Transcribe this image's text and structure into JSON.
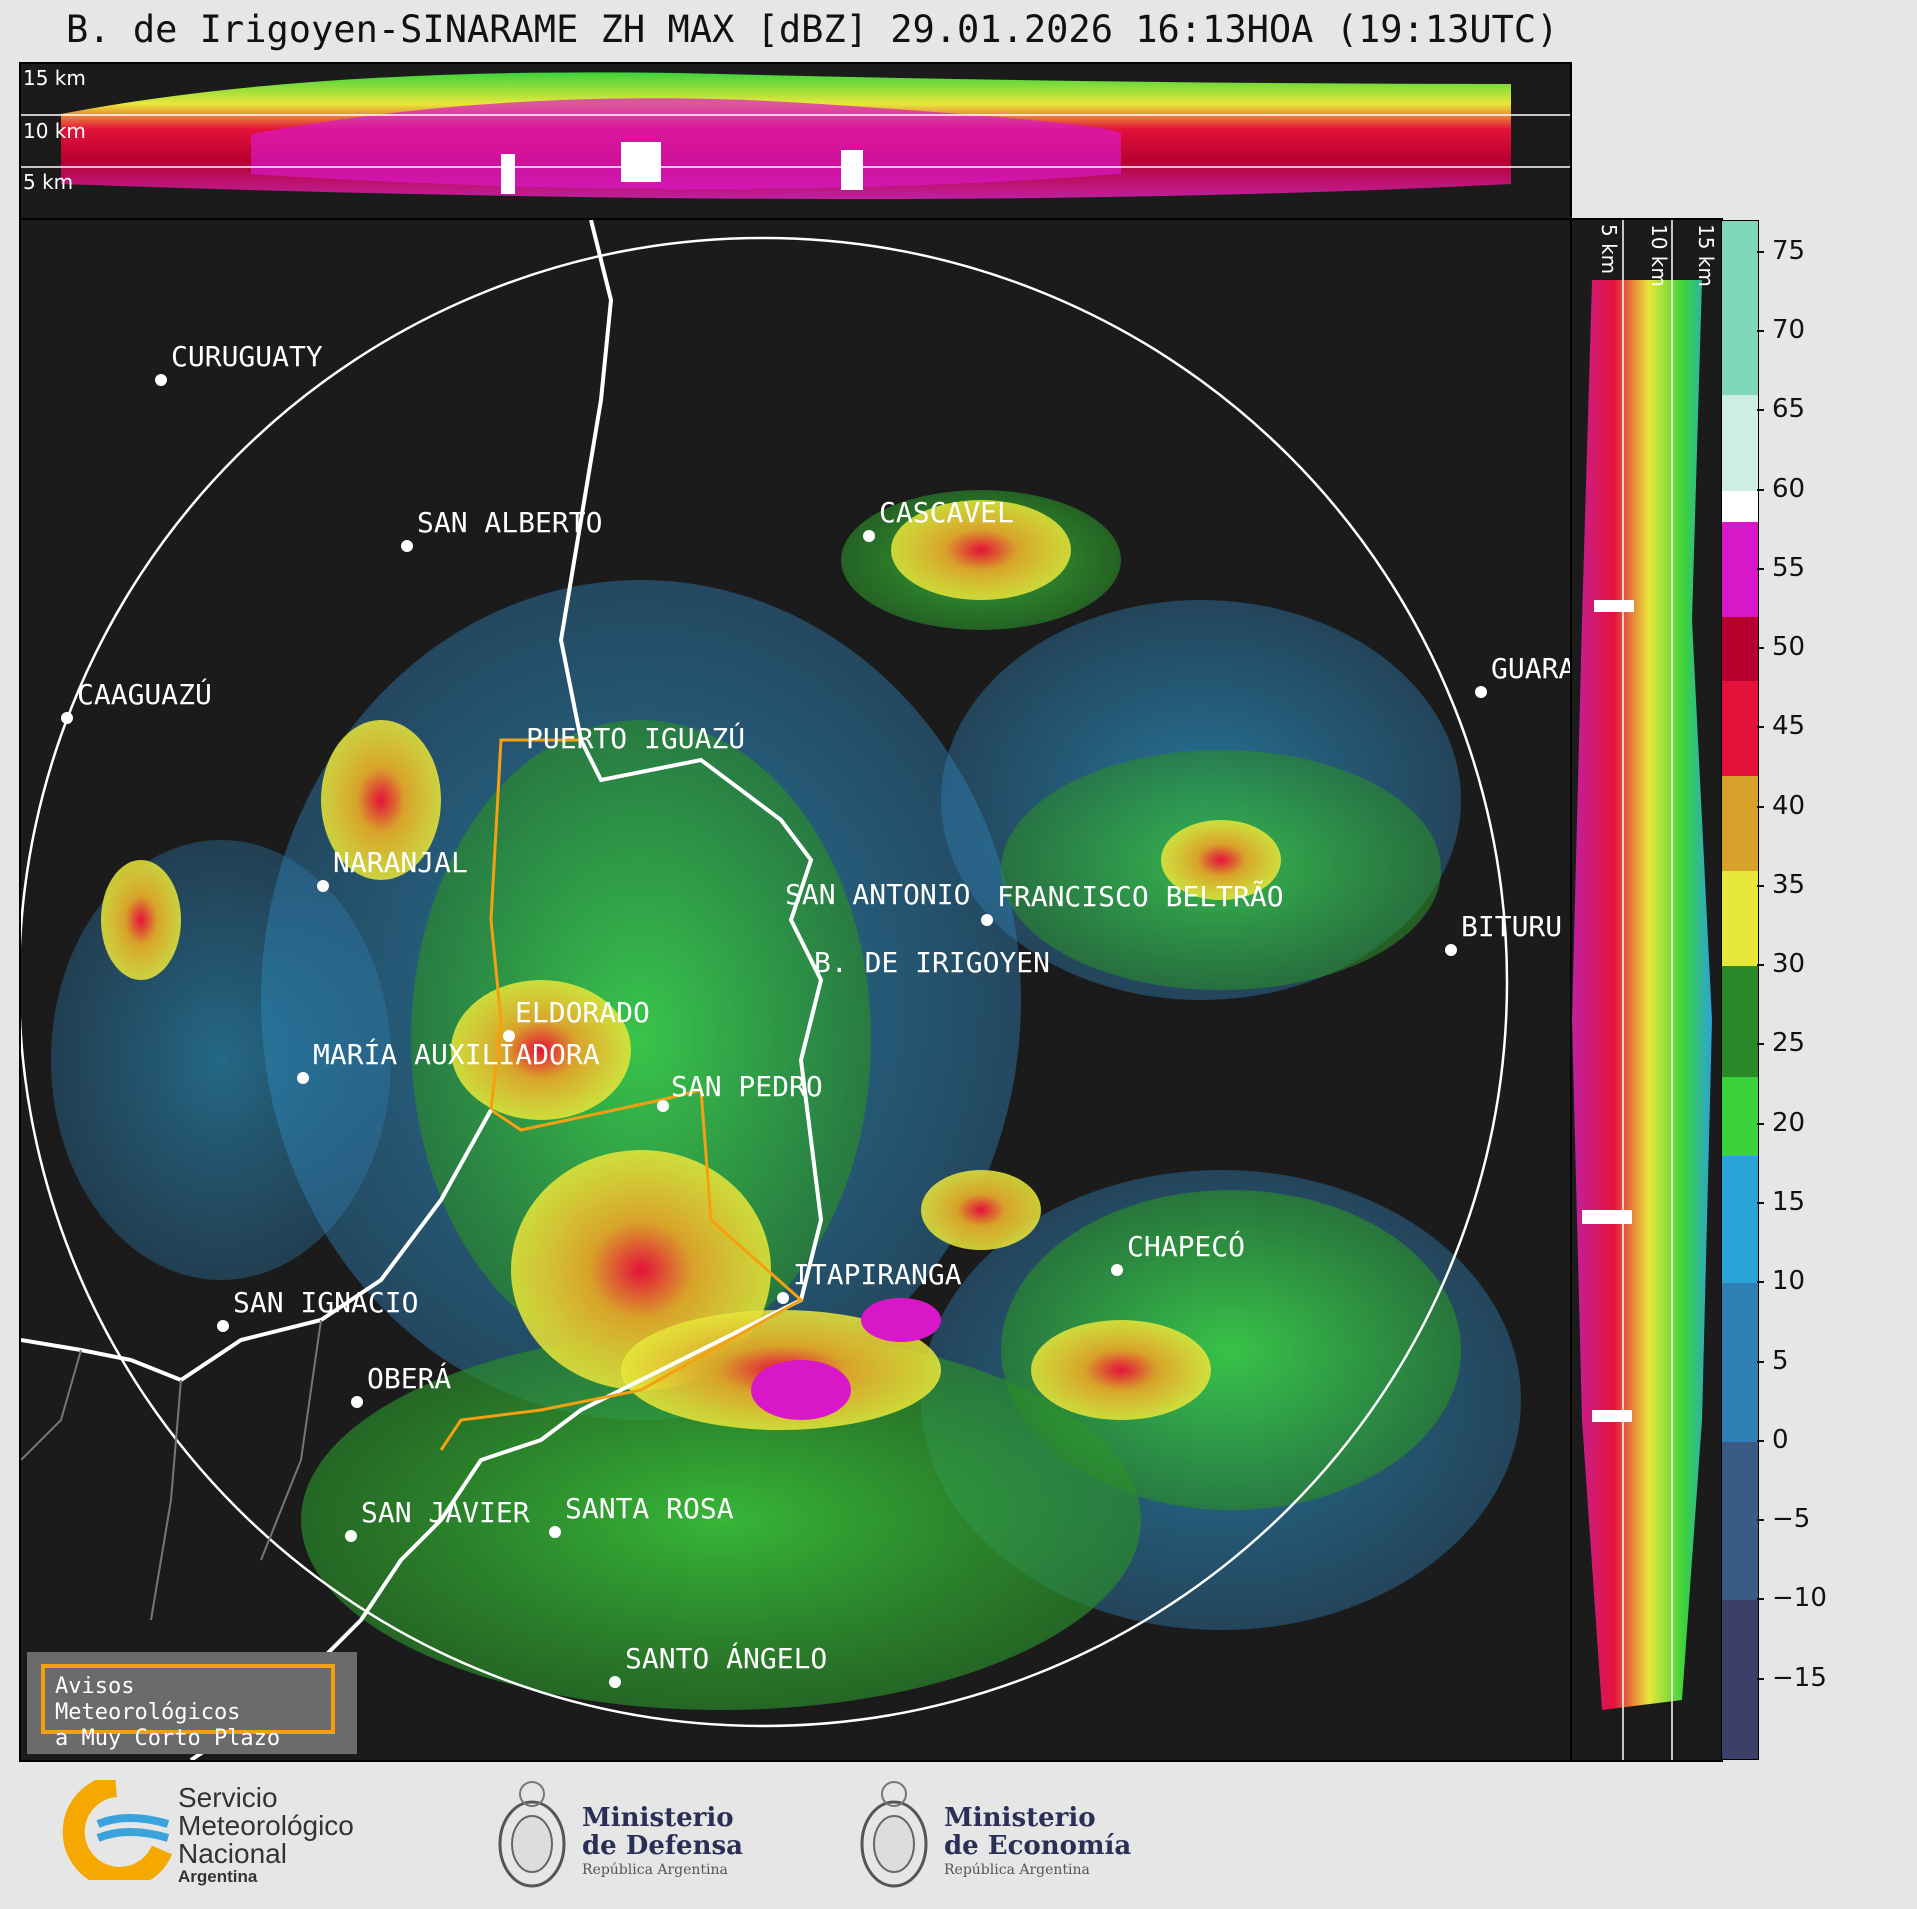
{
  "title": "B. de Irigoyen-SINARAME ZH MAX [dBZ] 29.01.2026 16:13HOA (19:13UTC)",
  "top_panel": {
    "km_labels": [
      "15 km",
      "10 km",
      "5 km"
    ]
  },
  "side_panel": {
    "km_labels": [
      "5 km",
      "10 km",
      "15 km"
    ]
  },
  "colorbar": {
    "ticks": [
      "75",
      "70",
      "65",
      "60",
      "55",
      "50",
      "45",
      "40",
      "35",
      "30",
      "25",
      "20",
      "15",
      "10",
      "5",
      "0",
      "−5",
      "−10",
      "−15"
    ],
    "range": [
      -20,
      77
    ],
    "bands": [
      {
        "from": -20,
        "to": -10,
        "color": "#3b3f6a"
      },
      {
        "from": -10,
        "to": 0,
        "color": "#3a5b86"
      },
      {
        "from": 0,
        "to": 10,
        "color": "#2f7fb4"
      },
      {
        "from": 10,
        "to": 18,
        "color": "#2aa4d6"
      },
      {
        "from": 18,
        "to": 23,
        "color": "#3cd23c"
      },
      {
        "from": 23,
        "to": 30,
        "color": "#2a8a2a"
      },
      {
        "from": 30,
        "to": 36,
        "color": "#e8e83a"
      },
      {
        "from": 36,
        "to": 42,
        "color": "#d8a22a"
      },
      {
        "from": 42,
        "to": 48,
        "color": "#e4123a"
      },
      {
        "from": 48,
        "to": 52,
        "color": "#b80030"
      },
      {
        "from": 52,
        "to": 58,
        "color": "#d818c8"
      },
      {
        "from": 58,
        "to": 60,
        "color": "#ffffff"
      },
      {
        "from": 60,
        "to": 66,
        "color": "#cfeee2"
      },
      {
        "from": 66,
        "to": 77,
        "color": "#7fd6b8"
      }
    ]
  },
  "cities": [
    {
      "name": "CURUGUATY"
    },
    {
      "name": "SAN ALBERTO"
    },
    {
      "name": "CASCAVEL"
    },
    {
      "name": "CAAGUAZÚ"
    },
    {
      "name": "GUARA"
    },
    {
      "name": "PUERTO IGUAZÚ"
    },
    {
      "name": "NARANJAL"
    },
    {
      "name": "SAN ANTONIO"
    },
    {
      "name": "FRANCISCO BELTRÃO"
    },
    {
      "name": "BITURU"
    },
    {
      "name": "B. DE IRIGOYEN"
    },
    {
      "name": "ELDORADO"
    },
    {
      "name": "MARÍA AUXILIADORA"
    },
    {
      "name": "SAN PEDRO"
    },
    {
      "name": "CHAPECÓ"
    },
    {
      "name": "ITAPIRANGA"
    },
    {
      "name": "SAN IGNACIO"
    },
    {
      "name": "OBERÁ"
    },
    {
      "name": "SAN JAVIER"
    },
    {
      "name": "SANTA ROSA"
    },
    {
      "name": "SANTO ÁNGELO"
    }
  ],
  "legend": {
    "line1": "Avisos Meteorológicos",
    "line2": "a Muy Corto Plazo"
  },
  "logos": {
    "smn": {
      "line1": "Servicio",
      "line2": "Meteorológico",
      "line3": "Nacional",
      "line4": "Argentina"
    },
    "defensa": {
      "line1": "Ministerio",
      "line2": "de Defensa",
      "line3": "República Argentina"
    },
    "economia": {
      "line1": "Ministerio",
      "line2": "de Economía",
      "line3": "República Argentina"
    }
  },
  "colors": {
    "ring": "#ffffff",
    "border_province": "#f5a010",
    "border_country": "#ffffff"
  }
}
